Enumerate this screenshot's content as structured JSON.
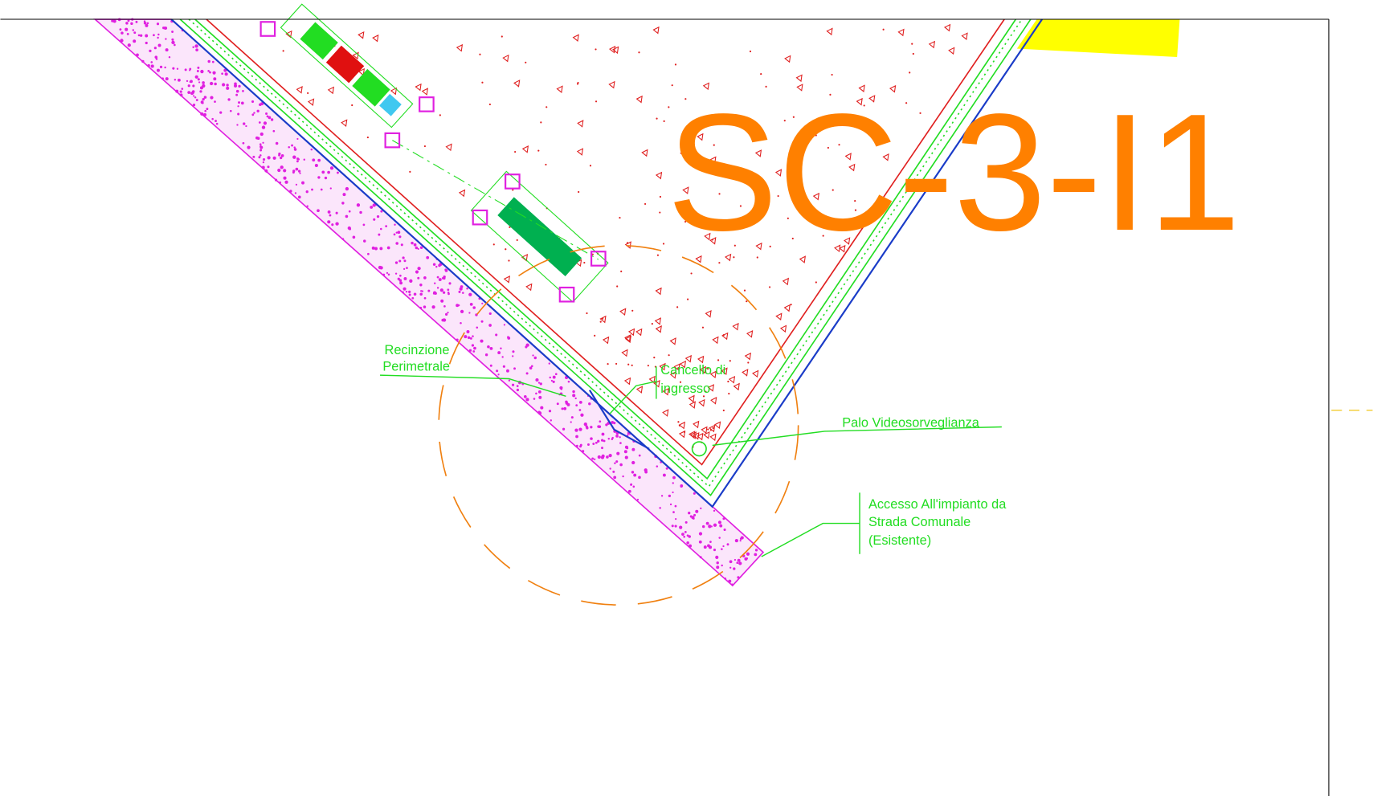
{
  "title": "SC-3-I1",
  "labels": [
    {
      "lines": [
        "Recinzione",
        "Perimetrale"
      ]
    },
    {
      "lines": [
        "Cancello di",
        "ingresso"
      ]
    },
    {
      "lines": [
        "Palo Videosorveglianza"
      ]
    },
    {
      "lines": [
        "Accesso All'impianto da",
        "Strada Comunale",
        "(Esistente)"
      ]
    }
  ]
}
